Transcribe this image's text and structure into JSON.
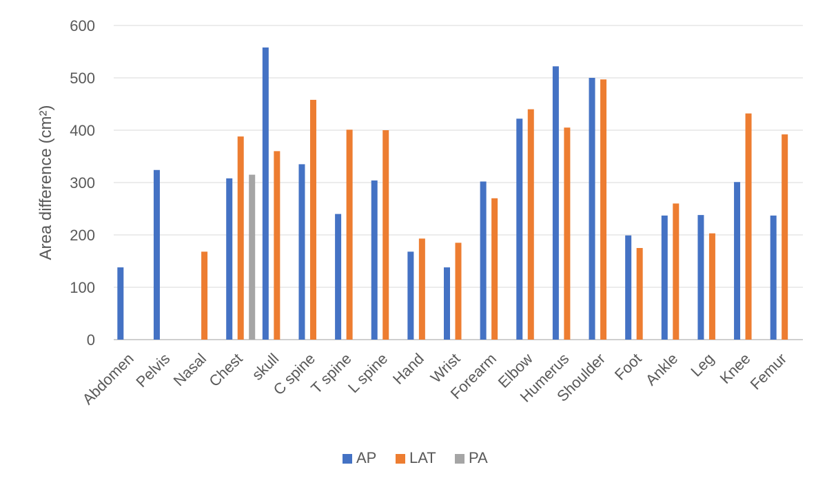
{
  "chart_data": {
    "type": "bar",
    "title": "",
    "xlabel": "",
    "ylabel": "Area difference (cm²)",
    "ylim": [
      0,
      600
    ],
    "yticks": [
      0,
      100,
      200,
      300,
      400,
      500,
      600
    ],
    "grid": true,
    "legend_position": "bottom",
    "categories": [
      "Abdomen",
      "Pelvis",
      "Nasal",
      "Chest",
      "skull",
      "C spine",
      "T spine",
      "L spine",
      "Hand",
      "Wrist",
      "Forearm",
      "Elbow",
      "Humerus",
      "Shoulder",
      "Foot",
      "Ankle",
      "Leg",
      "Knee",
      "Femur"
    ],
    "series": [
      {
        "name": "AP",
        "color": "#4472C4",
        "values": [
          138,
          324,
          null,
          308,
          558,
          335,
          240,
          304,
          168,
          138,
          302,
          422,
          522,
          500,
          199,
          237,
          238,
          301,
          237
        ]
      },
      {
        "name": "LAT",
        "color": "#ED7D31",
        "values": [
          null,
          null,
          168,
          388,
          360,
          458,
          401,
          400,
          193,
          185,
          270,
          440,
          405,
          497,
          175,
          260,
          203,
          432,
          392
        ]
      },
      {
        "name": "PA",
        "color": "#A5A5A5",
        "values": [
          null,
          null,
          null,
          315,
          null,
          null,
          null,
          null,
          null,
          null,
          null,
          null,
          null,
          null,
          null,
          null,
          null,
          null,
          null
        ]
      }
    ]
  }
}
